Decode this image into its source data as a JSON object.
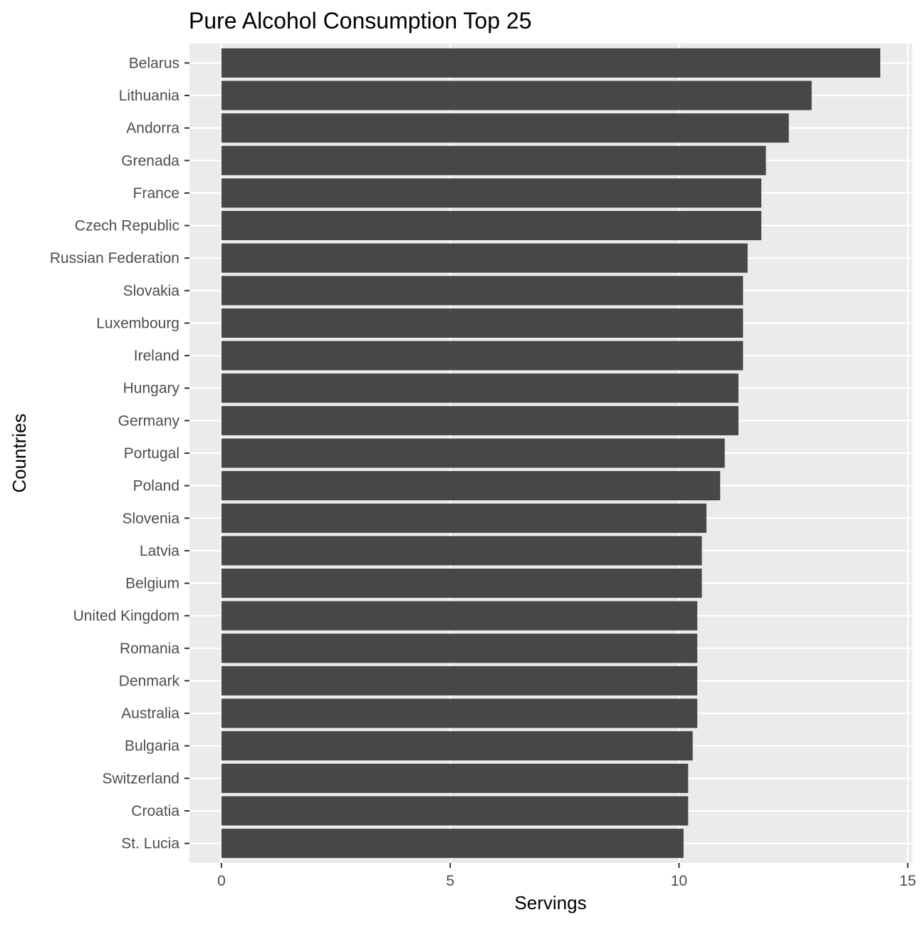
{
  "chart_data": {
    "type": "bar",
    "orientation": "horizontal",
    "title": "Pure Alcohol Consumption Top 25",
    "xlabel": "Servings",
    "ylabel": "Countries",
    "categories": [
      "Belarus",
      "Lithuania",
      "Andorra",
      "Grenada",
      "France",
      "Czech Republic",
      "Russian Federation",
      "Slovakia",
      "Luxembourg",
      "Ireland",
      "Hungary",
      "Germany",
      "Portugal",
      "Poland",
      "Slovenia",
      "Latvia",
      "Belgium",
      "United Kingdom",
      "Romania",
      "Denmark",
      "Australia",
      "Bulgaria",
      "Switzerland",
      "Croatia",
      "St. Lucia"
    ],
    "values": [
      14.4,
      12.9,
      12.4,
      11.9,
      11.8,
      11.8,
      11.5,
      11.4,
      11.4,
      11.4,
      11.3,
      11.3,
      11.0,
      10.9,
      10.6,
      10.5,
      10.5,
      10.4,
      10.4,
      10.4,
      10.4,
      10.3,
      10.2,
      10.2,
      10.1
    ],
    "xlim": [
      -0.7,
      15.1
    ],
    "x_ticks": [
      0,
      5,
      10,
      15
    ],
    "x_tick_labels": [
      "0",
      "5",
      "10",
      "15"
    ],
    "grid": true,
    "colors": {
      "bar": "#474747",
      "panel": "#ebebeb",
      "grid": "#ffffff"
    }
  }
}
